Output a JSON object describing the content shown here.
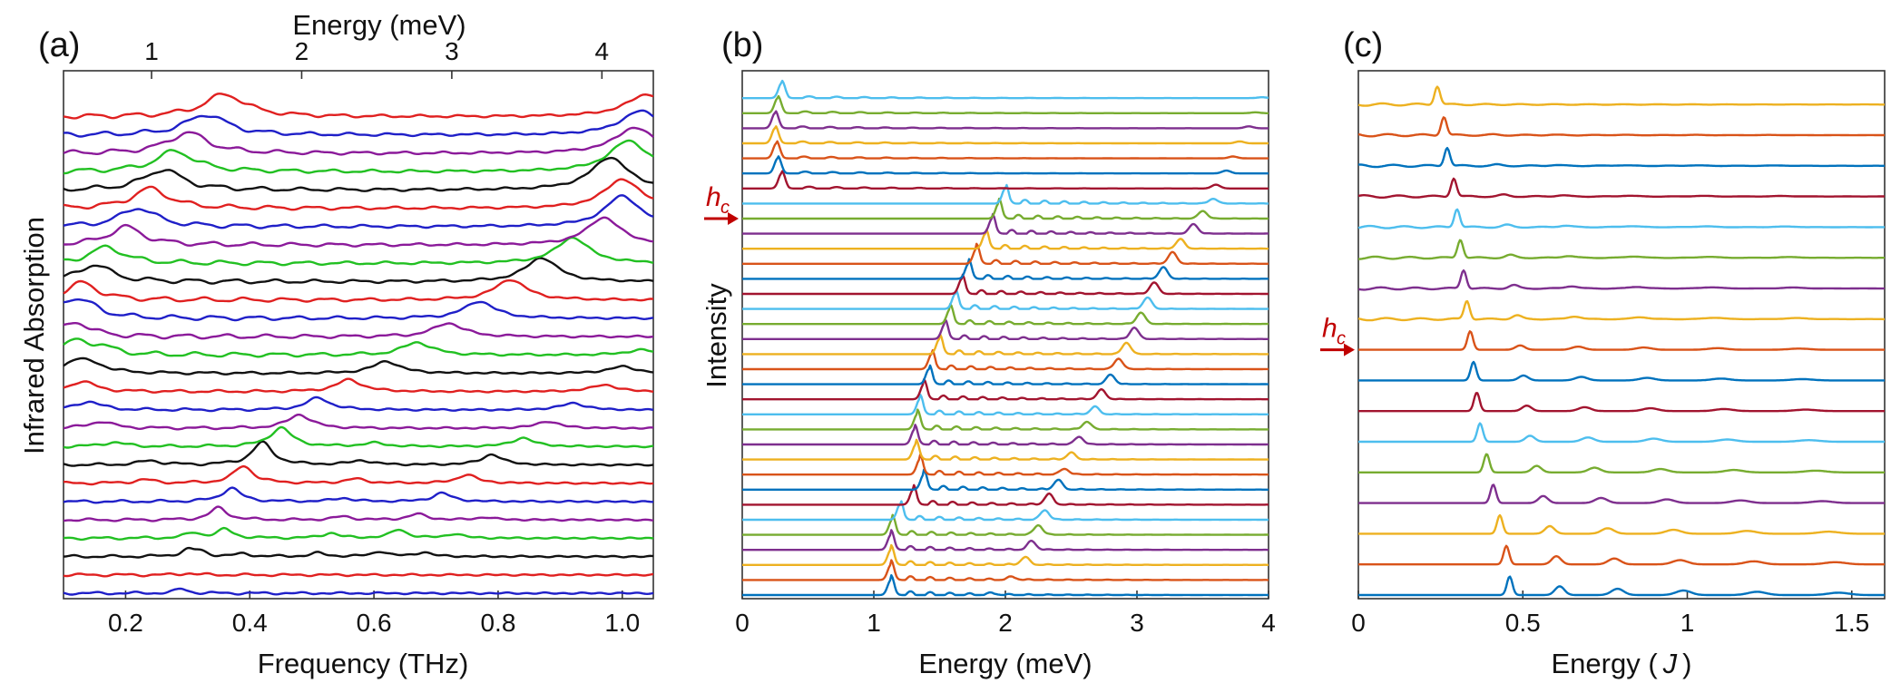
{
  "figure": {
    "panels": [
      "(a)",
      "(b)",
      "(c)"
    ]
  },
  "chart_data": [
    {
      "type": "line",
      "panel": "(a)",
      "xlabel": "Frequency (THz)",
      "ylabel": "Infrared Absorption",
      "top_axis_label": "Energy (meV)",
      "xlim": [
        0.1,
        1.05
      ],
      "x_ticks": [
        "0.2",
        "0.4",
        "0.6",
        "0.8",
        "1.0"
      ],
      "x_tick_values": [
        0.2,
        0.4,
        0.6,
        0.8,
        1.0
      ],
      "top_ticks": [
        "1",
        "2",
        "3",
        "4"
      ],
      "top_tick_values": [
        1,
        2,
        3,
        4
      ],
      "trace_count": 27,
      "colors": [
        "#1f1fc8",
        "#e02020",
        "#111111",
        "#22c022",
        "#8b1a9a"
      ],
      "series": [
        {
          "peaks": [
            [
              0.29,
              0.5
            ]
          ]
        },
        {
          "peaks": [
            [
              0.3,
              0.2
            ]
          ]
        },
        {
          "peaks": [
            [
              0.3,
              0.7
            ],
            [
              0.32,
              0.5
            ],
            [
              0.39,
              0.3
            ],
            [
              0.51,
              0.4
            ],
            [
              0.61,
              0.6
            ],
            [
              0.68,
              0.5
            ]
          ]
        },
        {
          "peaks": [
            [
              0.31,
              0.6
            ],
            [
              0.36,
              1.0
            ],
            [
              0.53,
              0.6
            ],
            [
              0.64,
              1.0
            ],
            [
              0.73,
              0.5
            ]
          ]
        },
        {
          "peaks": [
            [
              0.35,
              1.4
            ],
            [
              0.55,
              0.4
            ],
            [
              0.67,
              0.7
            ],
            [
              0.78,
              0.3
            ]
          ]
        },
        {
          "peaks": [
            [
              0.37,
              1.6
            ],
            [
              0.55,
              0.4
            ],
            [
              0.71,
              1.0
            ]
          ]
        },
        {
          "peaks": [
            [
              0.23,
              0.4
            ],
            [
              0.39,
              2.0
            ],
            [
              0.57,
              0.5
            ],
            [
              0.75,
              1.0
            ]
          ]
        },
        {
          "peaks": [
            [
              0.24,
              0.5
            ],
            [
              0.42,
              2.6
            ],
            [
              0.58,
              0.5
            ],
            [
              0.79,
              1.2
            ]
          ]
        },
        {
          "peaks": [
            [
              0.18,
              0.5
            ],
            [
              0.45,
              2.2
            ],
            [
              0.6,
              0.4
            ],
            [
              0.84,
              1.0
            ]
          ]
        },
        {
          "peaks": [
            [
              0.16,
              0.8
            ],
            [
              0.48,
              1.6
            ],
            [
              0.88,
              0.8
            ]
          ]
        },
        {
          "peaks": [
            [
              0.14,
              1.0
            ],
            [
              0.51,
              1.4
            ],
            [
              0.92,
              0.8
            ]
          ]
        },
        {
          "peaks": [
            [
              0.13,
              1.2
            ],
            [
              0.56,
              1.4
            ],
            [
              0.97,
              0.8
            ]
          ]
        },
        {
          "peaks": [
            [
              0.12,
              1.3
            ],
            [
              0.15,
              0.8
            ],
            [
              0.62,
              1.4
            ],
            [
              1.0,
              0.8
            ]
          ]
        },
        {
          "peaks": [
            [
              0.12,
              1.5
            ],
            [
              0.16,
              0.8
            ],
            [
              0.67,
              1.5
            ],
            [
              1.03,
              0.6
            ]
          ]
        },
        {
          "peaks": [
            [
              0.12,
              1.7
            ],
            [
              0.72,
              1.6
            ]
          ]
        },
        {
          "peaks": [
            [
              0.11,
              1.8
            ],
            [
              0.14,
              1.0
            ],
            [
              0.77,
              2.0
            ]
          ]
        },
        {
          "peaks": [
            [
              0.13,
              2.0
            ],
            [
              0.82,
              2.4
            ]
          ]
        },
        {
          "peaks": [
            [
              0.15,
              2.0
            ],
            [
              0.87,
              2.8
            ]
          ]
        },
        {
          "peaks": [
            [
              0.17,
              1.9
            ],
            [
              0.92,
              3.0
            ]
          ]
        },
        {
          "peaks": [
            [
              0.2,
              2.1
            ],
            [
              0.97,
              3.2
            ]
          ]
        },
        {
          "peaks": [
            [
              0.22,
              2.2
            ],
            [
              1.0,
              3.6
            ]
          ]
        },
        {
          "peaks": [
            [
              0.24,
              2.3
            ],
            [
              1.0,
              3.4
            ]
          ]
        },
        {
          "peaks": [
            [
              0.26,
              2.4
            ],
            [
              0.98,
              3.8
            ]
          ]
        },
        {
          "peaks": [
            [
              0.28,
              2.4
            ],
            [
              1.01,
              3.6
            ]
          ]
        },
        {
          "peaks": [
            [
              0.3,
              2.4
            ],
            [
              1.02,
              3.0
            ]
          ]
        },
        {
          "peaks": [
            [
              0.33,
              2.4
            ],
            [
              1.03,
              2.8
            ]
          ]
        },
        {
          "peaks": [
            [
              0.36,
              2.6
            ],
            [
              1.04,
              2.6
            ]
          ]
        }
      ]
    },
    {
      "type": "line",
      "panel": "(b)",
      "xlabel": "Energy (meV)",
      "ylabel": "Intensity",
      "xlim": [
        0,
        4
      ],
      "x_ticks": [
        "0",
        "1",
        "2",
        "3",
        "4"
      ],
      "x_tick_values": [
        0,
        1,
        2,
        3,
        4
      ],
      "marker": {
        "label": "h",
        "subscript": "c",
        "trace_index": 25,
        "color": "#c00000"
      },
      "trace_count": 34,
      "colors": [
        "#0072bd",
        "#d95319",
        "#edb120",
        "#7e2f8e",
        "#77ac30",
        "#4dbeee",
        "#a2142f"
      ],
      "series": [
        {
          "e0": 1.13,
          "e2": 1.9,
          "a2": 0.15
        },
        {
          "e0": 1.13,
          "e2": 2.05,
          "a2": 0.3
        },
        {
          "e0": 1.13,
          "e2": 2.15,
          "a2": 0.8
        },
        {
          "e0": 1.13,
          "e2": 2.2,
          "a2": 0.9
        },
        {
          "e0": 1.14,
          "e2": 2.25,
          "a2": 1.0
        },
        {
          "e0": 1.2,
          "e2": 2.3,
          "a2": 1.0
        },
        {
          "e0": 1.3,
          "e2": 2.33,
          "a2": 1.1
        },
        {
          "e0": 1.38,
          "e2": 2.4,
          "a2": 1.0
        },
        {
          "e0": 1.35,
          "e2": 2.45,
          "a2": 0.6
        },
        {
          "e0": 1.32,
          "e2": 2.5,
          "a2": 0.7
        },
        {
          "e0": 1.31,
          "e2": 2.56,
          "a2": 0.8
        },
        {
          "e0": 1.33,
          "e2": 2.62,
          "a2": 0.8
        },
        {
          "e0": 1.35,
          "e2": 2.68,
          "a2": 0.8
        },
        {
          "e0": 1.38,
          "e2": 2.73,
          "a2": 1.0
        },
        {
          "e0": 1.42,
          "e2": 2.8,
          "a2": 1.0
        },
        {
          "e0": 1.44,
          "e2": 2.86,
          "a2": 1.1
        },
        {
          "e0": 1.5,
          "e2": 2.92,
          "a2": 1.2
        },
        {
          "e0": 1.54,
          "e2": 2.98,
          "a2": 1.2
        },
        {
          "e0": 1.58,
          "e2": 3.03,
          "a2": 1.2
        },
        {
          "e0": 1.62,
          "e2": 3.08,
          "a2": 1.2
        },
        {
          "e0": 1.67,
          "e2": 3.13,
          "a2": 1.2
        },
        {
          "e0": 1.72,
          "e2": 3.2,
          "a2": 1.2
        },
        {
          "e0": 1.78,
          "e2": 3.27,
          "a2": 1.2
        },
        {
          "e0": 1.85,
          "e2": 3.33,
          "a2": 1.0
        },
        {
          "e0": 1.9,
          "e2": 3.43,
          "a2": 1.0
        },
        {
          "e0": 1.95,
          "e2": 3.5,
          "a2": 0.8
        },
        {
          "e0": 2.0,
          "e2": 3.58,
          "a2": 0.5
        },
        {
          "e0": 0.3,
          "e2": 3.6,
          "a2": 0.4
        },
        {
          "e0": 0.27,
          "e2": 3.68,
          "a2": 0.3
        },
        {
          "e0": 0.26,
          "e2": 3.73,
          "a2": 0.2
        },
        {
          "e0": 0.25,
          "e2": 3.78,
          "a2": 0.2
        },
        {
          "e0": 0.25,
          "e2": 3.85,
          "a2": 0.2
        },
        {
          "e0": 0.27,
          "e2": 3.9,
          "a2": 0.1
        },
        {
          "e0": 0.3,
          "e2": 3.95,
          "a2": 0.1
        }
      ]
    },
    {
      "type": "line",
      "panel": "(c)",
      "xlabel": "Energy ( J )",
      "xlabel_parts": [
        "Energy (",
        "J",
        ")"
      ],
      "xlim": [
        0,
        1.6
      ],
      "x_ticks": [
        "0",
        "0.5",
        "1",
        "1.5"
      ],
      "x_tick_values": [
        0,
        0.5,
        1,
        1.5
      ],
      "marker": {
        "label": "h",
        "subscript": "c",
        "trace_index": 8,
        "color": "#c00000"
      },
      "trace_count": 17,
      "colors": [
        "#0072bd",
        "#d95319",
        "#edb120",
        "#7e2f8e",
        "#77ac30",
        "#4dbeee",
        "#a2142f"
      ],
      "series": [
        {
          "e0": 0.46
        },
        {
          "e0": 0.45
        },
        {
          "e0": 0.43
        },
        {
          "e0": 0.41
        },
        {
          "e0": 0.39
        },
        {
          "e0": 0.37
        },
        {
          "e0": 0.36
        },
        {
          "e0": 0.35
        },
        {
          "e0": 0.34
        },
        {
          "e0": 0.33
        },
        {
          "e0": 0.32
        },
        {
          "e0": 0.31
        },
        {
          "e0": 0.3
        },
        {
          "e0": 0.29
        },
        {
          "e0": 0.27
        },
        {
          "e0": 0.26
        },
        {
          "e0": 0.24
        }
      ]
    }
  ]
}
